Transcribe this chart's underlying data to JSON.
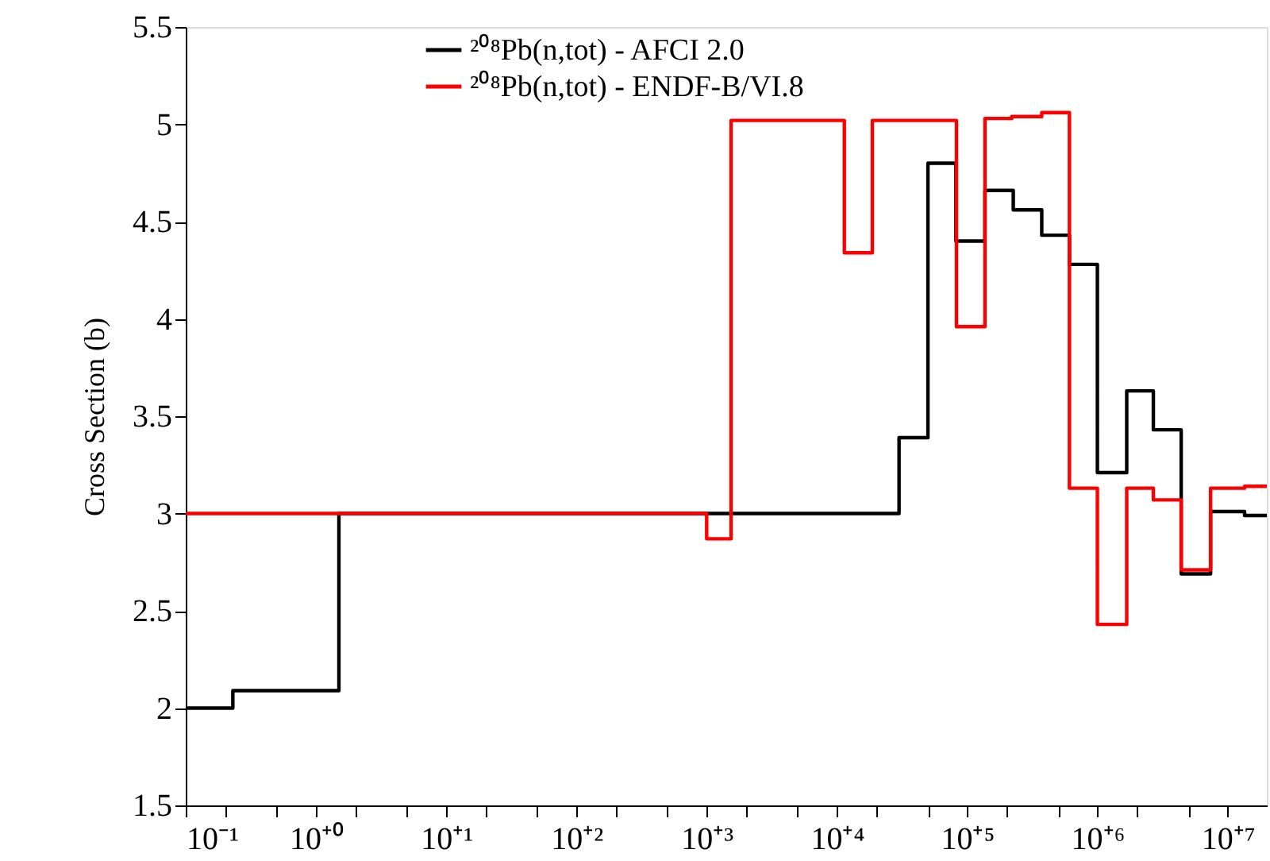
{
  "chart_data": {
    "type": "step",
    "ylabel": "Cross Section (b)",
    "log": "x",
    "grid": false,
    "legend": "top",
    "line_style": "solid",
    "marker": "none",
    "xlim": [
      0.1,
      20000000
    ],
    "ylim": [
      1.5,
      5.5
    ],
    "xticks": [
      {
        "value": 0.1,
        "label": "10⁻¹"
      },
      {
        "value": 0.2,
        "label": null
      },
      {
        "value": 0.5,
        "label": null
      },
      {
        "value": 1,
        "label": "10⁺⁰"
      },
      {
        "value": 2,
        "label": null
      },
      {
        "value": 5,
        "label": null
      },
      {
        "value": 10,
        "label": "10⁺¹"
      },
      {
        "value": 20,
        "label": null
      },
      {
        "value": 50,
        "label": null
      },
      {
        "value": 100,
        "label": "10⁺²"
      },
      {
        "value": 200,
        "label": null
      },
      {
        "value": 500,
        "label": null
      },
      {
        "value": 1000,
        "label": "10⁺³"
      },
      {
        "value": 2000,
        "label": null
      },
      {
        "value": 5000,
        "label": null
      },
      {
        "value": 10000,
        "label": "10⁺⁴"
      },
      {
        "value": 20000,
        "label": null
      },
      {
        "value": 50000,
        "label": null
      },
      {
        "value": 100000,
        "label": "10⁺⁵"
      },
      {
        "value": 200000,
        "label": null
      },
      {
        "value": 500000,
        "label": null
      },
      {
        "value": 1000000,
        "label": "10⁺⁶"
      },
      {
        "value": 2000000,
        "label": null
      },
      {
        "value": 5000000,
        "label": null
      },
      {
        "value": 10000000,
        "label": "10⁺⁷"
      }
    ],
    "yticks": [
      1.5,
      2,
      2.5,
      3,
      3.5,
      4,
      4.5,
      5,
      5.5
    ],
    "series": [
      {
        "name": "²⁰⁸Pb(n,tot) - AFCI 2.0",
        "color": "#000000",
        "x": [
          0.1,
          0.23,
          1.5,
          30000,
          50000,
          82000,
          137000,
          226000,
          374000,
          610000,
          1000000,
          1680000,
          2690000,
          4400000,
          7400000,
          13500000,
          20000000
        ],
        "values": [
          2.0,
          2.09,
          3.0,
          3.39,
          4.8,
          4.4,
          4.66,
          4.56,
          4.43,
          4.28,
          3.21,
          3.63,
          3.43,
          2.69,
          3.01,
          2.99,
          2.99
        ]
      },
      {
        "name": "²⁰⁸Pb(n,tot) - ENDF-B/VI.8",
        "color": "#ff0000",
        "x": [
          0.1,
          1000,
          1540,
          11400,
          18700,
          82800,
          137000,
          220000,
          374000,
          610000,
          1000000,
          1680000,
          2690000,
          4400000,
          7400000,
          13500000,
          20000000
        ],
        "values": [
          3.0,
          2.87,
          5.02,
          4.34,
          5.02,
          3.96,
          5.03,
          5.04,
          5.06,
          3.13,
          2.43,
          3.13,
          3.07,
          2.71,
          3.13,
          3.14,
          3.14
        ]
      }
    ]
  }
}
